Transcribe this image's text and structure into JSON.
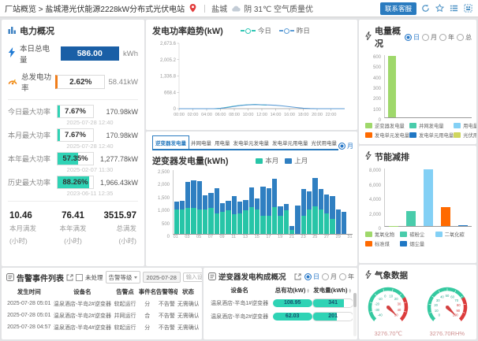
{
  "topbar": {
    "breadcrumb": "厂站概览 > 盐城港光伏能源2228kW分布式光伏电站",
    "city": "盐城",
    "weather": "阴 31℃ 空气质量优",
    "contact_button": "联系客服"
  },
  "power": {
    "title": "电力概况",
    "today": {
      "label": "本日总电量",
      "value": "586.00",
      "unit": "kWh"
    },
    "rate": {
      "label": "总发电功率",
      "value": "2.62%",
      "right": "58.41kW"
    },
    "max_rows": [
      {
        "label": "今日最大功率",
        "percent": "7.67%",
        "pct": 7.67,
        "value": "170.98kW",
        "time": "2025-07-28 12:40"
      },
      {
        "label": "本月最大功率",
        "percent": "7.67%",
        "pct": 7.67,
        "value": "170.98kW",
        "time": "2025-07-28 12:40"
      },
      {
        "label": "本年最大功率",
        "percent": "57.35%",
        "pct": 57.35,
        "value": "1,277.78kW",
        "time": "2025-02-07 11:30"
      },
      {
        "label": "历史最大功率",
        "percent": "88.26%",
        "pct": 88.26,
        "value": "1,966.43kW",
        "time": "2023-06-11 12:35"
      }
    ],
    "stats": [
      {
        "value": "10.46",
        "label": "本月满发",
        "sub": "(小时)"
      },
      {
        "value": "76.41",
        "label": "本年满发",
        "sub": "(小时)"
      },
      {
        "value": "3515.97",
        "label": "总满发",
        "sub": "(小时)"
      }
    ]
  },
  "trend": {
    "title": "发电功率趋势(kW)"
  },
  "inv": {
    "tabs": [
      "逆变器发电量",
      "并网电量",
      "用电量",
      "发电单元发电量",
      "发电单元用电量",
      "光伏用电量"
    ],
    "active_tab": 0,
    "period_options": [
      "月",
      "年"
    ],
    "period_selected": 0,
    "title": "逆变器发电量(kWh)"
  },
  "energy": {
    "title": "电量概况",
    "options": [
      "日",
      "月",
      "年",
      "总"
    ],
    "selected": 0
  },
  "saving": {
    "title": "节能减排"
  },
  "alarm": {
    "title": "告警事件列表",
    "unhandled_label": "未处理",
    "level_label": "告警等级",
    "date": "2025-07-28",
    "placeholder": "输入设备名/告警点",
    "query_label": "查询",
    "headers": [
      "发生时间",
      "设备名",
      "告警点",
      "事件名",
      "告警等级",
      "状态"
    ],
    "rows": [
      [
        "2025-07-28 05:01",
        "温泉酒店-半岛2#逆变器",
        "软起运行",
        "分",
        "不告警",
        "无需确认"
      ],
      [
        "2025-07-28 05:01",
        "温泉酒店-半岛2#逆变器",
        "并网运行",
        "合",
        "不告警",
        "无需确认"
      ],
      [
        "2025-07-28 04:57",
        "温泉酒店-半岛4#逆变器",
        "软起运行",
        "分",
        "不告警",
        "无需确认"
      ]
    ]
  },
  "comp": {
    "title": "逆变器发电构成概况",
    "options": [
      "日",
      "月",
      "年"
    ],
    "selected": 0,
    "headers": [
      "设备名",
      "总有功(kW)",
      "发电量(kWh)"
    ],
    "rows": [
      {
        "name": "温泉酒店-半岛1#逆变器",
        "power": "108.95",
        "power_pct": 100,
        "energy": "341",
        "energy_pct": 78
      },
      {
        "name": "温泉酒店-半岛2#逆变器",
        "power": "62.03",
        "power_pct": 100,
        "energy": "201",
        "energy_pct": 60
      }
    ]
  },
  "weather_panel": {
    "title": "气象数据"
  },
  "chart_data": [
    {
      "id": "power_trend",
      "type": "line",
      "title": "发电功率趋势(kW)",
      "legend": [
        {
          "name": "今日",
          "color": "#2fc6b4"
        },
        {
          "name": "昨日",
          "color": "#5b9bd5"
        }
      ],
      "ylim": [
        0,
        2673.6
      ],
      "yticks": [
        {
          "v": 0,
          "label": "0"
        },
        {
          "v": 668.4,
          "label": "668.4"
        },
        {
          "v": 1336.8,
          "label": "1,336.8"
        },
        {
          "v": 2005.2,
          "label": "2,005.2"
        },
        {
          "v": 2673.6,
          "label": "2,673.6"
        }
      ],
      "xticks": [
        "00:00",
        "02:00",
        "04:00",
        "06:00",
        "08:00",
        "10:00",
        "12:00",
        "14:00",
        "16:00",
        "18:00",
        "20:00",
        "22:00"
      ],
      "x_range_hours": [
        0,
        24
      ],
      "series": [
        {
          "name": "今日",
          "color": "#2fc6b4",
          "points_h": [
            0,
            1,
            2,
            3,
            4,
            5,
            5.5,
            6,
            7,
            8,
            9,
            10,
            11,
            12,
            12.7
          ],
          "values": [
            0,
            0,
            0,
            0,
            0,
            1,
            4,
            16,
            58,
            102,
            138,
            160,
            170,
            156,
            147
          ]
        },
        {
          "name": "昨日",
          "color": "#5b9bd5",
          "points_h": [
            0,
            1,
            2,
            3,
            4,
            5,
            6,
            7,
            8,
            9,
            10,
            11,
            12,
            13,
            14,
            15,
            16,
            17,
            18,
            19,
            20,
            21,
            22,
            23,
            24
          ],
          "values": [
            0,
            0,
            0,
            0,
            0,
            1,
            12,
            48,
            95,
            135,
            155,
            166,
            160,
            150,
            138,
            112,
            82,
            48,
            20,
            6,
            1,
            0,
            0,
            0,
            0
          ]
        }
      ]
    },
    {
      "id": "inverter_energy",
      "type": "bar",
      "stacked": true,
      "title": "逆变器发电量(kWh)",
      "ymax": 2500,
      "yticks": [
        "0",
        "500",
        "1,000",
        "1,500",
        "2,000",
        "2,500"
      ],
      "categories": [
        "01",
        "02",
        "03",
        "04",
        "05",
        "06",
        "07",
        "08",
        "09",
        "10",
        "11",
        "12",
        "13",
        "14",
        "15",
        "16",
        "17",
        "18",
        "19",
        "20",
        "21",
        "22",
        "23",
        "24",
        "25",
        "26",
        "27",
        "28",
        "29",
        "30",
        "31"
      ],
      "series": [
        {
          "name": "本月",
          "color": "#27c5a7",
          "values": [
            950,
            950,
            1000,
            1000,
            950,
            950,
            1000,
            800,
            850,
            900,
            750,
            780,
            900,
            1050,
            950,
            700,
            700,
            1050,
            700,
            900,
            150,
            0,
            700,
            950,
            1070,
            950,
            800,
            580,
            0,
            0,
            0
          ]
        },
        {
          "name": "上月",
          "color": "#2f7fc1",
          "values": [
            300,
            320,
            1000,
            1070,
            1080,
            530,
            580,
            960,
            350,
            370,
            710,
            470,
            420,
            760,
            430,
            1120,
            1080,
            1070,
            360,
            260,
            170,
            1100,
            1050,
            690,
            1090,
            780,
            740,
            890,
            950,
            860,
            0
          ]
        }
      ]
    },
    {
      "id": "energy_overview",
      "type": "bar",
      "title": "电量概况",
      "ymax": 600,
      "yticks": [
        "0",
        "100",
        "200",
        "300",
        "400",
        "500",
        "600"
      ],
      "categories": [
        "逆变器发电量",
        "并网发电量",
        "用电量",
        "发电单元发电量",
        "发电单元用电量",
        "光伏用电量"
      ],
      "values": [
        586,
        0,
        0,
        0,
        0,
        0
      ],
      "colors": [
        "#9fd86b",
        "#49ccab",
        "#83d0f5",
        "#ff6a00",
        "#1f77c4",
        "#cfd65d"
      ]
    },
    {
      "id": "energy_saving",
      "type": "bar",
      "title": "节能减排",
      "ymax": 8000,
      "yticks": [
        "0",
        "2,000",
        "4,000",
        "6,000",
        "8,000"
      ],
      "categories": [
        "氮氧化物",
        "碳粉尘",
        "二氧化碳",
        "标准煤",
        "烟尘量"
      ],
      "values": [
        40,
        2100,
        7800,
        2600,
        60
      ],
      "colors": [
        "#9fd86b",
        "#49ccab",
        "#83d0f5",
        "#ff6a00",
        "#1f77c4"
      ]
    },
    {
      "id": "weather_gauges",
      "type": "gauge",
      "items": [
        {
          "name": "温度",
          "min": -40,
          "max": 50,
          "ticks": [
            -40,
            -30,
            -20,
            -10,
            0,
            10,
            20,
            30,
            40,
            50
          ],
          "red_from": 0.72,
          "value_label": "3276.70℃"
        },
        {
          "name": "湿度",
          "min": 0,
          "max": 100,
          "ticks": [
            0,
            10,
            20,
            30,
            40,
            50,
            60,
            70,
            80,
            90,
            100
          ],
          "red_from": 0.72,
          "value_label": "3276.70RH%"
        }
      ]
    }
  ]
}
